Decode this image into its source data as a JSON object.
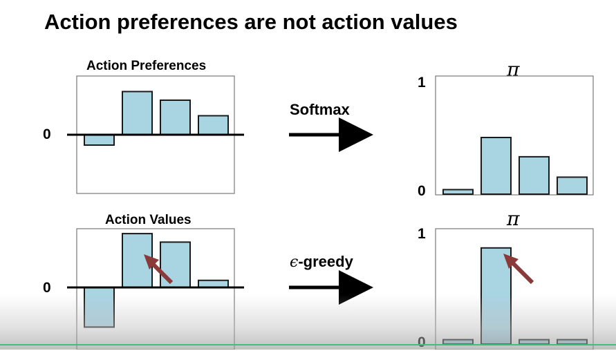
{
  "slide": {
    "title": "Action preferences are not action values"
  },
  "chart_data": [
    {
      "type": "bar",
      "title": "Action Preferences",
      "values": [
        -0.3,
        1.25,
        1.0,
        0.55
      ],
      "y_tick_labels": [
        "0"
      ],
      "ylim": [
        -1.7,
        1.7
      ]
    },
    {
      "type": "bar",
      "title": "π",
      "values": [
        0.04,
        0.5,
        0.33,
        0.15
      ],
      "y_tick_labels": [
        "1",
        "0"
      ],
      "ylim": [
        0,
        1
      ]
    },
    {
      "type": "bar",
      "title": "Action Values",
      "values": [
        -1.4,
        1.9,
        1.6,
        0.25
      ],
      "y_tick_labels": [
        "0"
      ],
      "ylim": [
        -1.7,
        2.0
      ],
      "annotations": [
        "arrow pointing at highest bar"
      ]
    },
    {
      "type": "bar",
      "title": "π",
      "values": [
        0.04,
        0.87,
        0.04,
        0.04
      ],
      "y_tick_labels": [
        "1",
        "0"
      ],
      "ylim": [
        0,
        1
      ],
      "annotations": [
        "arrow pointing at highest bar"
      ]
    }
  ],
  "operators": {
    "softmax": "Softmax",
    "egreedy_symbol": "ϵ",
    "egreedy": "-greedy"
  },
  "colors": {
    "bar_fill": "#a9d4e2",
    "bar_stroke": "#1a1a1a",
    "annotation_arrow": "#8b3a3a"
  }
}
